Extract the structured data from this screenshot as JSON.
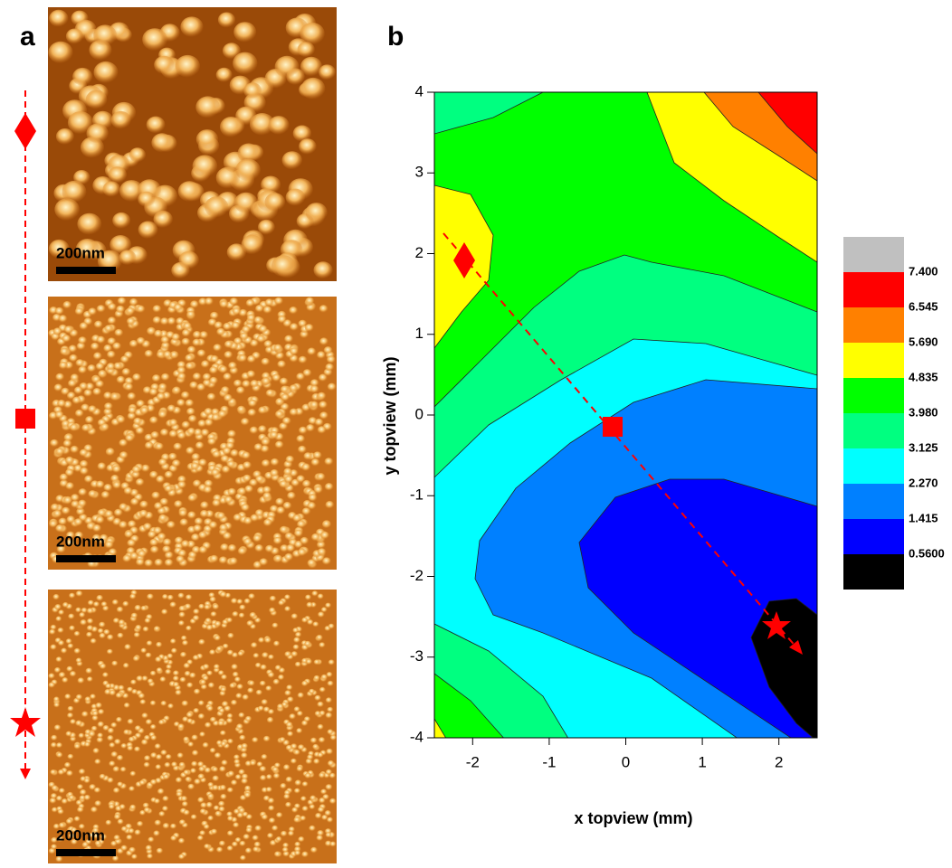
{
  "panels": {
    "a": {
      "label": "a",
      "scale_bars": [
        "200nm",
        "200nm",
        "200nm"
      ]
    },
    "b": {
      "label": "b"
    }
  },
  "chart_data": {
    "type": "contour",
    "xlabel": "x topview (mm)",
    "ylabel": "y topview (mm)",
    "xlim": [
      -2.5,
      2.5
    ],
    "ylim": [
      -4,
      4
    ],
    "xticks": [
      -2,
      -1,
      0,
      1,
      2
    ],
    "yticks": [
      -4,
      -3,
      -2,
      -1,
      0,
      1,
      2,
      3,
      4
    ],
    "colorbar": {
      "levels": [
        {
          "value": 0.56,
          "label": "0.5600"
        },
        1.415,
        {
          "value": 2.27,
          "label": "2.270"
        },
        3.125,
        {
          "value": 3.98,
          "label": "3.980"
        },
        4.835,
        {
          "value": 5.69,
          "label": "5.690"
        },
        6.545,
        {
          "value": 7.4,
          "label": "7.400"
        }
      ],
      "colors": [
        "#000000",
        "#0000ff",
        "#0080ff",
        "#00ffff",
        "#00ff80",
        "#00ff00",
        "#ffff00",
        "#ff8000",
        "#ff0000",
        "#c0c0c0"
      ]
    },
    "path_color": "#ff0000"
  }
}
